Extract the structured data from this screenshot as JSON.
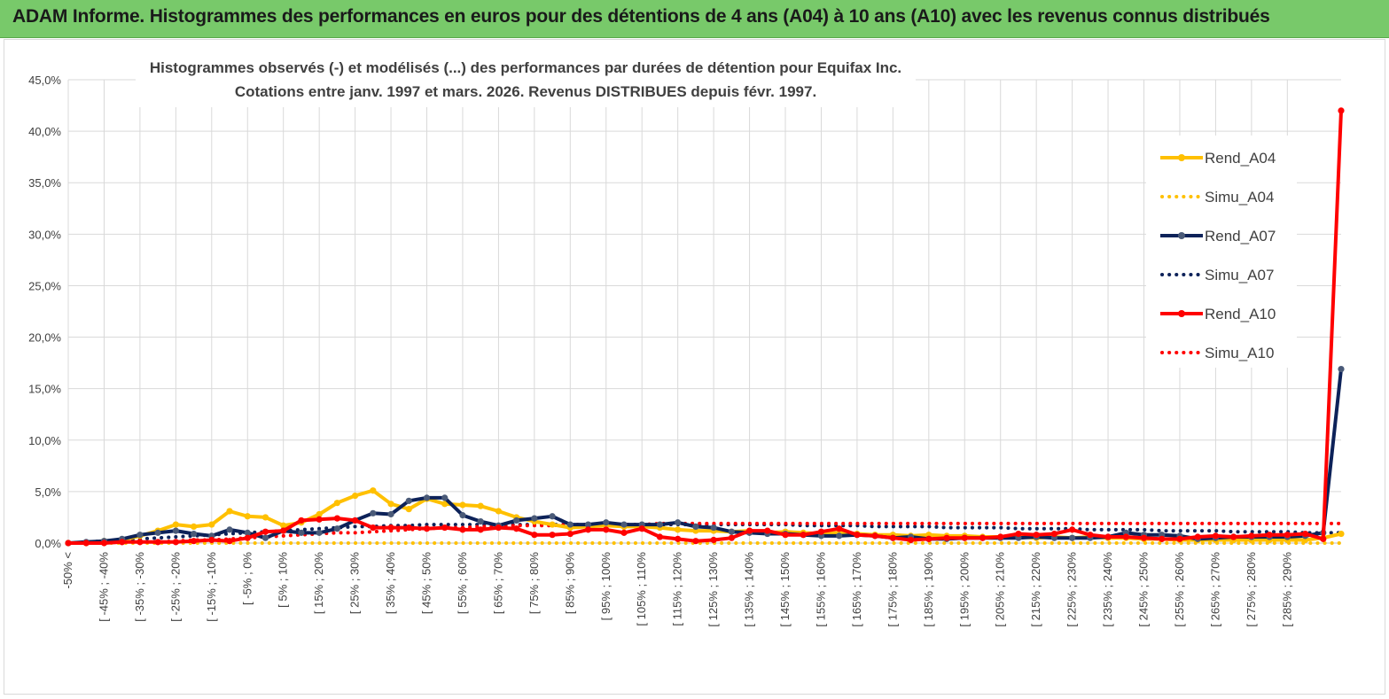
{
  "banner": {
    "title": "ADAM Informe. Histogrammes des performances en euros pour des détentions de 4 ans (A04) à 10 ans (A10) avec les revenus connus distribués"
  },
  "colors": {
    "banner_bg": "#78c96a",
    "a04": "#ffc000",
    "a07": "#0d2259",
    "a10": "#ff0000",
    "grid": "#d9d9d9",
    "marker_a07": "#4a5a78"
  },
  "chart_data": {
    "type": "line",
    "title_lines": [
      "Histogrammes observés (-) et modélisés (...) des performances par durées de détention pour Equifax Inc.",
      "Cotations entre janv. 1997 et mars. 2026. Revenus DISTRIBUES depuis févr. 1997."
    ],
    "ylim": [
      0,
      45
    ],
    "y_ticks": [
      "0,0%",
      "5,0%",
      "10,0%",
      "15,0%",
      "20,0%",
      "25,0%",
      "30,0%",
      "35,0%",
      "40,0%",
      "45,0%"
    ],
    "x_ticks": [
      "-50% <",
      "[ -45% ; -40%",
      "[ -35% ; -30%",
      "[ -25% ; -20%",
      "[ -15% ; -10%",
      "[ -5% ; 0%",
      "[ 5% ; 10%",
      "[ 15% ; 20%",
      "[ 25% ; 30%",
      "[ 35% ; 40%",
      "[ 45% ; 50%",
      "[ 55% ; 60%",
      "[ 65% ; 70%",
      "[ 75% ; 80%",
      "[ 85% ; 90%",
      "[ 95% ; 100%",
      "[ 105% ; 110%",
      "[ 115% ; 120%",
      "[ 125% ; 130%",
      "[ 135% ; 140%",
      "[ 145% ; 150%",
      "[ 155% ; 160%",
      "[ 165% ; 170%",
      "[ 175% ; 180%",
      "[ 185% ; 190%",
      "[ 195% ; 200%",
      "[ 205% ; 210%",
      "[ 215% ; 220%",
      "[ 225% ; 230%",
      "[ 235% ; 240%",
      "[ 245% ; 250%",
      "[ 255% ; 260%",
      "[ 265% ; 270%",
      "[ 275% ; 280%",
      "[ 285% ; 290%"
    ],
    "grid": true,
    "legend_position": "right",
    "series": [
      {
        "name": "Rend_A04",
        "style": "solid",
        "color": "#ffc000",
        "values": [
          0,
          0,
          0.2,
          0.3,
          0.7,
          1.2,
          1.8,
          1.6,
          1.8,
          3.1,
          2.6,
          2.5,
          1.7,
          2.0,
          2.8,
          3.9,
          4.6,
          5.1,
          3.8,
          3.3,
          4.3,
          3.8,
          3.7,
          3.6,
          3.1,
          2.5,
          2.1,
          1.8,
          1.5,
          1.6,
          1.7,
          1.6,
          1.6,
          1.5,
          1.3,
          1.2,
          1.2,
          1.1,
          1.2,
          1.0,
          1.1,
          1.0,
          0.9,
          1.0,
          0.9,
          0.8,
          0.8,
          0.7,
          0.8,
          0.7,
          0.7,
          0.6,
          0.6,
          0.6,
          0.5,
          0.6,
          0.5,
          0.6,
          0.5,
          0.5,
          0.4,
          0.4,
          0.3,
          0.3,
          0.3,
          0.3,
          0.3,
          0.3,
          0.3,
          0.3,
          0.5,
          0.9
        ]
      },
      {
        "name": "Simu_A04",
        "style": "dotted",
        "color": "#ffc000",
        "values": [
          0,
          0,
          0,
          0,
          0,
          0,
          0,
          0,
          0,
          0,
          0,
          0,
          0,
          0,
          0,
          0,
          0,
          0,
          0,
          0,
          0,
          0,
          0,
          0,
          0,
          0,
          0,
          0,
          0,
          0,
          0,
          0,
          0,
          0,
          0,
          0,
          0,
          0,
          0,
          0,
          0,
          0,
          0,
          0,
          0,
          0,
          0,
          0,
          0,
          0,
          0,
          0,
          0,
          0,
          0,
          0,
          0,
          0,
          0,
          0,
          0,
          0,
          0,
          0,
          0,
          0,
          0,
          0,
          0,
          0,
          0,
          0
        ]
      },
      {
        "name": "Rend_A07",
        "style": "solid",
        "color": "#0d2259",
        "values": [
          0,
          0.1,
          0.2,
          0.4,
          0.8,
          1.0,
          1.2,
          0.9,
          0.7,
          1.3,
          1.0,
          0.5,
          1.2,
          1.0,
          1.0,
          1.4,
          2.2,
          2.9,
          2.8,
          4.1,
          4.4,
          4.4,
          2.7,
          2.1,
          1.7,
          2.2,
          2.4,
          2.6,
          1.8,
          1.8,
          2.0,
          1.8,
          1.8,
          1.8,
          2.0,
          1.6,
          1.5,
          1.1,
          1.0,
          0.9,
          0.9,
          0.8,
          0.7,
          0.7,
          0.8,
          0.7,
          0.5,
          0.6,
          0.4,
          0.4,
          0.5,
          0.5,
          0.5,
          0.5,
          0.6,
          0.5,
          0.5,
          0.5,
          0.6,
          1.0,
          0.8,
          0.8,
          0.7,
          0.4,
          0.5,
          0.6,
          0.6,
          0.6,
          0.6,
          0.7,
          1.0,
          16.9
        ]
      },
      {
        "name": "Simu_A07",
        "style": "dotted",
        "color": "#0d2259",
        "values": [
          0,
          0.1,
          0.2,
          0.3,
          0.4,
          0.5,
          0.6,
          0.7,
          0.8,
          0.9,
          1.0,
          1.1,
          1.2,
          1.3,
          1.4,
          1.5,
          1.6,
          1.6,
          1.7,
          1.7,
          1.8,
          1.8,
          1.8,
          1.8,
          1.8,
          1.8,
          1.8,
          1.8,
          1.8,
          1.8,
          1.8,
          1.8,
          1.8,
          1.8,
          1.8,
          1.8,
          1.8,
          1.8,
          1.8,
          1.8,
          1.8,
          1.7,
          1.7,
          1.7,
          1.7,
          1.6,
          1.6,
          1.6,
          1.6,
          1.5,
          1.5,
          1.5,
          1.5,
          1.4,
          1.4,
          1.4,
          1.4,
          1.3,
          1.3,
          1.3,
          1.3,
          1.2,
          1.2,
          1.2,
          1.2,
          1.1,
          1.1,
          1.1,
          1.1,
          1.0,
          1.0,
          1.0
        ]
      },
      {
        "name": "Rend_A10",
        "style": "solid",
        "color": "#ff0000",
        "values": [
          0,
          0,
          0,
          0.1,
          0.1,
          0.1,
          0.1,
          0.2,
          0.3,
          0.2,
          0.5,
          1.1,
          1.2,
          2.2,
          2.3,
          2.4,
          2.2,
          1.5,
          1.5,
          1.5,
          1.4,
          1.5,
          1.3,
          1.3,
          1.5,
          1.4,
          0.8,
          0.8,
          0.9,
          1.3,
          1.3,
          1.0,
          1.4,
          0.6,
          0.4,
          0.2,
          0.3,
          0.5,
          1.2,
          1.2,
          0.8,
          0.8,
          1.1,
          1.4,
          0.8,
          0.7,
          0.5,
          0.3,
          0.4,
          0.5,
          0.5,
          0.5,
          0.6,
          0.9,
          0.8,
          0.9,
          1.3,
          0.8,
          0.6,
          0.6,
          0.5,
          0.4,
          0.4,
          0.6,
          0.7,
          0.6,
          0.7,
          0.8,
          0.8,
          0.9,
          0.4,
          42.0
        ]
      },
      {
        "name": "Simu_A10",
        "style": "dotted",
        "color": "#ff0000",
        "values": [
          0,
          0,
          0,
          0.1,
          0.1,
          0.1,
          0.2,
          0.3,
          0.3,
          0.4,
          0.5,
          0.6,
          0.7,
          0.8,
          0.9,
          1.0,
          1.0,
          1.1,
          1.2,
          1.3,
          1.4,
          1.5,
          1.5,
          1.6,
          1.6,
          1.7,
          1.7,
          1.7,
          1.8,
          1.8,
          1.8,
          1.8,
          1.8,
          1.9,
          1.9,
          1.9,
          1.9,
          1.9,
          1.9,
          1.9,
          1.9,
          1.9,
          1.9,
          1.9,
          1.9,
          1.9,
          1.9,
          1.9,
          1.9,
          1.9,
          1.9,
          1.9,
          1.9,
          1.9,
          1.9,
          1.9,
          1.9,
          1.9,
          1.9,
          1.9,
          1.9,
          1.9,
          1.9,
          1.9,
          1.9,
          1.9,
          1.9,
          1.9,
          1.9,
          1.9,
          1.9,
          1.9
        ]
      }
    ]
  }
}
